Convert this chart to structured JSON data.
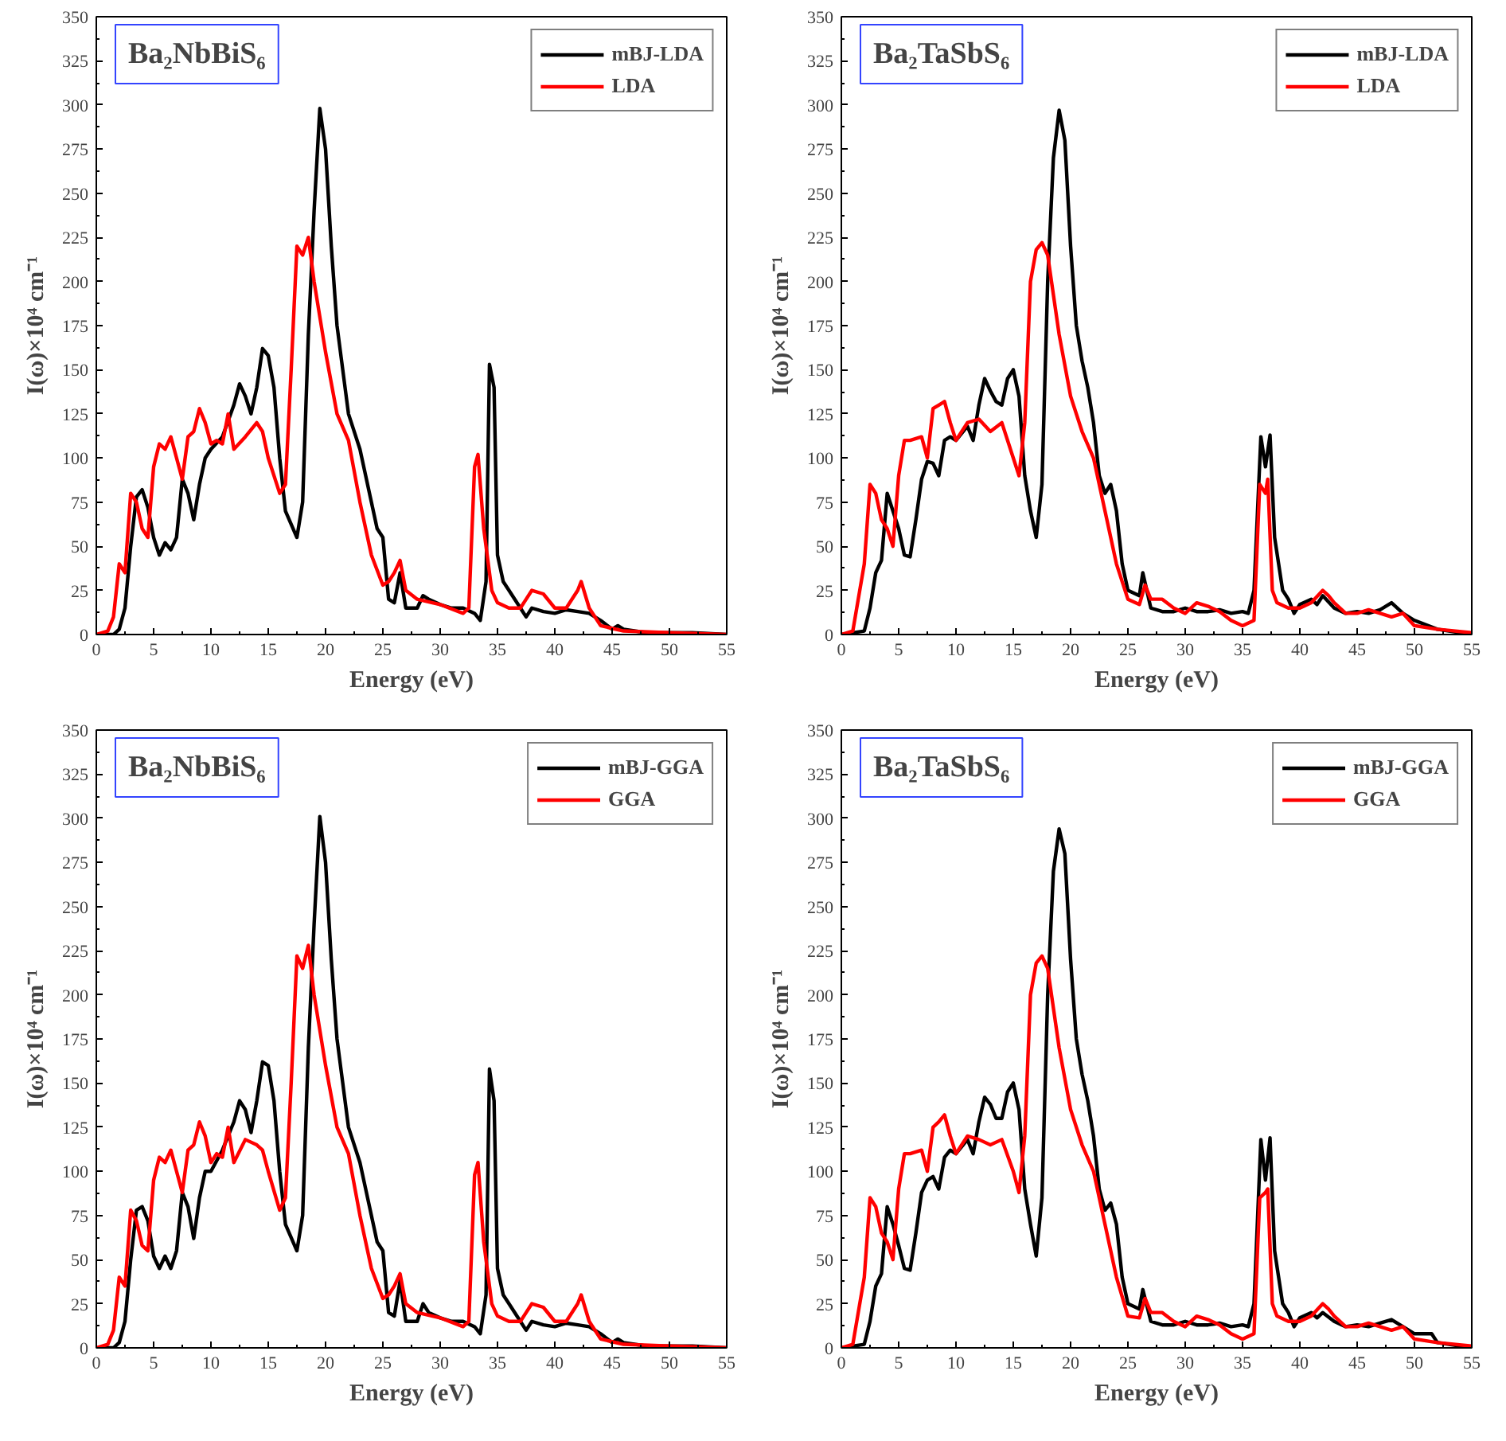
{
  "chart_data": [
    {
      "type": "line",
      "title": "Ba₂NbBiS₆",
      "xlabel": "Energy (eV)",
      "ylabel": "I(ω)×10⁴ cm⁻¹",
      "xlim": [
        0,
        55
      ],
      "ylim": [
        0,
        350
      ],
      "xticks": [
        0,
        5,
        10,
        15,
        20,
        25,
        30,
        35,
        40,
        45,
        50,
        55
      ],
      "yticks": [
        0,
        25,
        50,
        75,
        100,
        125,
        150,
        175,
        200,
        225,
        250,
        275,
        300,
        325,
        350
      ],
      "grid": false,
      "legend": "top right",
      "series": [
        {
          "name": "mBJ-LDA",
          "color": "#000000",
          "x": [
            0,
            1.5,
            2,
            2.5,
            3,
            3.5,
            4,
            4.5,
            5,
            5.5,
            6,
            6.5,
            7,
            7.5,
            8,
            8.5,
            9,
            9.5,
            10,
            11,
            12,
            12.5,
            13,
            13.5,
            14,
            14.5,
            15,
            15.5,
            16,
            16.5,
            17.5,
            18,
            18.5,
            19,
            19.5,
            20,
            20.5,
            21,
            21.5,
            22,
            23,
            24,
            24.5,
            25,
            25.5,
            26,
            26.5,
            27,
            28,
            28.5,
            29,
            30,
            31,
            32,
            33,
            33.5,
            34,
            34.3,
            34.7,
            35,
            35.5,
            36,
            37,
            37.5,
            38,
            39,
            40,
            41,
            42,
            43,
            44,
            45,
            45.5,
            46,
            48,
            52,
            55
          ],
          "values": [
            0,
            0,
            3,
            15,
            50,
            78,
            82,
            72,
            55,
            45,
            52,
            48,
            55,
            88,
            80,
            65,
            85,
            100,
            105,
            112,
            130,
            142,
            135,
            125,
            140,
            162,
            158,
            140,
            100,
            70,
            55,
            75,
            170,
            240,
            298,
            275,
            220,
            175,
            150,
            125,
            105,
            75,
            60,
            55,
            20,
            18,
            35,
            15,
            15,
            22,
            20,
            17,
            15,
            15,
            12,
            8,
            30,
            153,
            140,
            45,
            30,
            25,
            15,
            10,
            15,
            13,
            12,
            14,
            13,
            12,
            8,
            3,
            5,
            3,
            1,
            1,
            0
          ]
        },
        {
          "name": "LDA",
          "color": "#ff0000",
          "x": [
            0,
            1,
            1.5,
            2,
            2.5,
            3,
            3.5,
            4,
            4.5,
            5,
            5.5,
            6,
            6.5,
            7,
            7.5,
            8,
            8.5,
            9,
            9.5,
            10,
            10.5,
            11,
            11.5,
            12,
            13,
            14,
            14.5,
            15,
            16,
            16.5,
            17,
            17.5,
            18,
            18.5,
            19,
            20,
            21,
            22,
            23,
            24,
            25,
            25.5,
            26,
            26.5,
            27,
            28,
            30,
            32,
            32.5,
            33,
            33.3,
            33.8,
            34.5,
            35,
            36,
            37,
            37.5,
            38,
            39,
            40,
            41,
            42,
            42.3,
            43,
            44,
            46,
            50,
            55
          ],
          "values": [
            0,
            2,
            10,
            40,
            35,
            80,
            75,
            60,
            55,
            95,
            108,
            105,
            112,
            100,
            88,
            112,
            115,
            128,
            120,
            108,
            110,
            108,
            125,
            105,
            112,
            120,
            115,
            100,
            80,
            85,
            150,
            220,
            215,
            225,
            200,
            160,
            125,
            110,
            75,
            45,
            28,
            30,
            35,
            42,
            25,
            20,
            17,
            12,
            15,
            95,
            102,
            60,
            25,
            18,
            15,
            15,
            20,
            25,
            23,
            15,
            15,
            25,
            30,
            15,
            5,
            2,
            1,
            0
          ]
        }
      ]
    },
    {
      "type": "line",
      "title": "Ba₂TaSbS₆",
      "xlabel": "Energy (eV)",
      "ylabel": "I(ω)×10⁴ cm⁻¹",
      "xlim": [
        0,
        55
      ],
      "ylim": [
        0,
        350
      ],
      "xticks": [
        0,
        5,
        10,
        15,
        20,
        25,
        30,
        35,
        40,
        45,
        50,
        55
      ],
      "yticks": [
        0,
        25,
        50,
        75,
        100,
        125,
        150,
        175,
        200,
        225,
        250,
        275,
        300,
        325,
        350
      ],
      "grid": false,
      "legend": "top right",
      "series": [
        {
          "name": "mBJ-LDA",
          "color": "#000000",
          "x": [
            0,
            2,
            2.5,
            3,
            3.5,
            4,
            4.5,
            5,
            5.5,
            6,
            6.5,
            7,
            7.5,
            8,
            8.5,
            9,
            9.5,
            10,
            11,
            11.5,
            12,
            12.5,
            13,
            13.5,
            14,
            14.5,
            15,
            15.5,
            16,
            16.5,
            17,
            17.5,
            18,
            18.5,
            19,
            19.5,
            20,
            20.5,
            21,
            21.5,
            22,
            22.5,
            23,
            23.5,
            24,
            24.5,
            25,
            26,
            26.3,
            27,
            28,
            29,
            30,
            31,
            32,
            33,
            34,
            35,
            35.5,
            36,
            36.6,
            37,
            37.4,
            37.8,
            38.5,
            39,
            39.5,
            40,
            41,
            41.5,
            42,
            43,
            44,
            45,
            46,
            47,
            48,
            49,
            50,
            52,
            55
          ],
          "values": [
            0,
            2,
            15,
            35,
            42,
            80,
            70,
            60,
            45,
            44,
            65,
            88,
            98,
            97,
            90,
            110,
            112,
            110,
            118,
            110,
            130,
            145,
            138,
            132,
            130,
            145,
            150,
            135,
            90,
            70,
            55,
            85,
            200,
            270,
            297,
            280,
            220,
            175,
            155,
            140,
            120,
            90,
            80,
            85,
            70,
            40,
            25,
            22,
            35,
            15,
            13,
            13,
            15,
            13,
            13,
            14,
            12,
            13,
            12,
            25,
            112,
            95,
            113,
            55,
            25,
            20,
            12,
            17,
            20,
            17,
            22,
            15,
            12,
            13,
            12,
            14,
            18,
            12,
            8,
            3,
            0
          ]
        },
        {
          "name": "LDA",
          "color": "#ff0000",
          "x": [
            0,
            1,
            2,
            2.5,
            3,
            3.5,
            4,
            4.5,
            5,
            5.5,
            6,
            7,
            7.5,
            8,
            8.5,
            9,
            9.5,
            10,
            11,
            12,
            13,
            14,
            15,
            15.5,
            16,
            16.5,
            17,
            17.5,
            18,
            19,
            20,
            21,
            22,
            23,
            24,
            25,
            26,
            26.5,
            27,
            28,
            29,
            30,
            31,
            32,
            33,
            34,
            35,
            36,
            36.5,
            37,
            37.2,
            37.6,
            38,
            39,
            40,
            41,
            42,
            42.5,
            43,
            44,
            45,
            46,
            47,
            48,
            49,
            50,
            52,
            55
          ],
          "values": [
            0,
            2,
            40,
            85,
            80,
            65,
            60,
            50,
            90,
            110,
            110,
            112,
            100,
            128,
            130,
            132,
            120,
            110,
            120,
            122,
            115,
            120,
            100,
            90,
            120,
            200,
            218,
            222,
            215,
            170,
            135,
            115,
            100,
            70,
            40,
            20,
            17,
            28,
            20,
            20,
            15,
            12,
            18,
            16,
            13,
            8,
            5,
            8,
            85,
            80,
            88,
            25,
            18,
            15,
            15,
            18,
            25,
            22,
            18,
            12,
            12,
            14,
            12,
            10,
            12,
            5,
            3,
            1
          ]
        }
      ]
    },
    {
      "type": "line",
      "title": "Ba₂NbBiS₆",
      "xlabel": "Energy (eV)",
      "ylabel": "I(ω)×10⁴ cm⁻¹",
      "xlim": [
        0,
        55
      ],
      "ylim": [
        0,
        350
      ],
      "xticks": [
        0,
        5,
        10,
        15,
        20,
        25,
        30,
        35,
        40,
        45,
        50,
        55
      ],
      "yticks": [
        0,
        25,
        50,
        75,
        100,
        125,
        150,
        175,
        200,
        225,
        250,
        275,
        300,
        325,
        350
      ],
      "grid": false,
      "legend": "top right",
      "series": [
        {
          "name": "mBJ-GGA",
          "color": "#000000",
          "x": [
            0,
            1.5,
            2,
            2.5,
            3,
            3.5,
            4,
            4.5,
            5,
            5.5,
            6,
            6.5,
            7,
            7.5,
            8,
            8.5,
            9,
            9.5,
            10,
            11,
            12,
            12.5,
            13,
            13.5,
            14,
            14.5,
            15,
            15.5,
            16,
            16.5,
            17.5,
            18,
            18.5,
            19,
            19.5,
            20,
            20.5,
            21,
            21.5,
            22,
            23,
            24,
            24.5,
            25,
            25.5,
            26,
            26.5,
            27,
            28,
            28.5,
            29,
            30,
            31,
            32,
            33,
            33.5,
            34,
            34.3,
            34.7,
            35,
            35.5,
            36,
            37,
            37.5,
            38,
            39,
            40,
            41,
            42,
            43,
            44,
            45,
            45.5,
            46,
            48,
            52,
            55
          ],
          "values": [
            0,
            0,
            3,
            15,
            50,
            78,
            80,
            72,
            52,
            45,
            52,
            45,
            55,
            88,
            80,
            62,
            85,
            100,
            100,
            112,
            128,
            140,
            135,
            122,
            140,
            162,
            160,
            140,
            100,
            70,
            55,
            75,
            170,
            240,
            301,
            275,
            220,
            175,
            150,
            125,
            105,
            75,
            60,
            55,
            20,
            18,
            38,
            15,
            15,
            25,
            20,
            17,
            15,
            15,
            12,
            8,
            30,
            158,
            140,
            45,
            30,
            25,
            15,
            10,
            15,
            13,
            12,
            14,
            13,
            12,
            8,
            3,
            5,
            3,
            1,
            1,
            0
          ]
        },
        {
          "name": "GGA",
          "color": "#ff0000",
          "x": [
            0,
            1,
            1.5,
            2,
            2.5,
            3,
            3.5,
            4,
            4.5,
            5,
            5.5,
            6,
            6.5,
            7,
            7.5,
            8,
            8.5,
            9,
            9.5,
            10,
            10.5,
            11,
            11.5,
            12,
            13,
            14,
            14.5,
            15,
            16,
            16.5,
            17,
            17.5,
            18,
            18.5,
            19,
            20,
            21,
            22,
            23,
            24,
            25,
            25.5,
            26,
            26.5,
            27,
            28,
            30,
            32,
            32.5,
            33,
            33.3,
            33.8,
            34.5,
            35,
            36,
            37,
            37.5,
            38,
            39,
            40,
            41,
            42,
            42.3,
            43,
            44,
            46,
            50,
            55
          ],
          "values": [
            0,
            2,
            10,
            40,
            35,
            78,
            72,
            58,
            55,
            95,
            108,
            105,
            112,
            100,
            88,
            112,
            115,
            128,
            120,
            105,
            110,
            108,
            125,
            105,
            118,
            115,
            112,
            100,
            78,
            85,
            150,
            222,
            215,
            228,
            200,
            160,
            125,
            110,
            75,
            45,
            28,
            30,
            35,
            42,
            25,
            20,
            17,
            12,
            15,
            98,
            105,
            60,
            25,
            18,
            15,
            15,
            20,
            25,
            23,
            15,
            15,
            25,
            30,
            15,
            5,
            2,
            1,
            0
          ]
        }
      ]
    },
    {
      "type": "line",
      "title": "Ba₂TaSbS₆",
      "xlabel": "Energy (eV)",
      "ylabel": "I(ω)×10⁴ cm⁻¹",
      "xlim": [
        0,
        55
      ],
      "ylim": [
        0,
        350
      ],
      "xticks": [
        0,
        5,
        10,
        15,
        20,
        25,
        30,
        35,
        40,
        45,
        50,
        55
      ],
      "yticks": [
        0,
        25,
        50,
        75,
        100,
        125,
        150,
        175,
        200,
        225,
        250,
        275,
        300,
        325,
        350
      ],
      "grid": false,
      "legend": "top right",
      "series": [
        {
          "name": "mBJ-GGA",
          "color": "#000000",
          "x": [
            0,
            2,
            2.5,
            3,
            3.5,
            4,
            4.5,
            5,
            5.5,
            6,
            6.5,
            7,
            7.5,
            8,
            8.5,
            9,
            9.5,
            10,
            11,
            11.5,
            12,
            12.5,
            13,
            13.5,
            14,
            14.5,
            15,
            15.5,
            16,
            16.5,
            17,
            17.5,
            18,
            18.5,
            19,
            19.5,
            20,
            20.5,
            21,
            21.5,
            22,
            22.5,
            23,
            23.5,
            24,
            24.5,
            25,
            26,
            26.3,
            27,
            28,
            29,
            30,
            31,
            32,
            33,
            34,
            35,
            35.5,
            36,
            36.6,
            37,
            37.4,
            37.8,
            38.5,
            39,
            39.5,
            40,
            41,
            41.5,
            42,
            43,
            44,
            45,
            46,
            47,
            48,
            49,
            50,
            51.5,
            52,
            55
          ],
          "values": [
            0,
            2,
            15,
            35,
            42,
            80,
            70,
            58,
            45,
            44,
            65,
            88,
            95,
            97,
            90,
            108,
            112,
            110,
            118,
            110,
            128,
            142,
            138,
            130,
            130,
            145,
            150,
            135,
            90,
            70,
            52,
            85,
            200,
            270,
            294,
            280,
            220,
            175,
            155,
            140,
            120,
            90,
            78,
            82,
            70,
            40,
            25,
            22,
            33,
            15,
            13,
            13,
            15,
            13,
            13,
            14,
            12,
            13,
            12,
            25,
            118,
            95,
            119,
            55,
            25,
            20,
            12,
            17,
            20,
            17,
            20,
            15,
            12,
            13,
            12,
            14,
            16,
            12,
            8,
            8,
            3,
            0
          ]
        },
        {
          "name": "GGA",
          "color": "#ff0000",
          "x": [
            0,
            1,
            2,
            2.5,
            3,
            3.5,
            4,
            4.5,
            5,
            5.5,
            6,
            7,
            7.5,
            8,
            8.5,
            9,
            9.5,
            10,
            11,
            12,
            13,
            14,
            15,
            15.5,
            16,
            16.5,
            17,
            17.5,
            18,
            19,
            20,
            21,
            22,
            23,
            24,
            25,
            26,
            26.5,
            27,
            28,
            29,
            30,
            31,
            32,
            33,
            34,
            35,
            36,
            36.5,
            37,
            37.2,
            37.6,
            38,
            39,
            40,
            41,
            42,
            42.5,
            43,
            44,
            45,
            46,
            47,
            48,
            49,
            50,
            52,
            55
          ],
          "values": [
            0,
            2,
            40,
            85,
            80,
            65,
            60,
            50,
            90,
            110,
            110,
            112,
            100,
            125,
            128,
            132,
            120,
            110,
            120,
            118,
            115,
            118,
            100,
            88,
            120,
            200,
            218,
            222,
            215,
            170,
            135,
            115,
            100,
            70,
            40,
            18,
            17,
            28,
            20,
            20,
            15,
            12,
            18,
            16,
            13,
            8,
            5,
            8,
            85,
            88,
            90,
            25,
            18,
            15,
            15,
            18,
            25,
            22,
            18,
            12,
            12,
            14,
            12,
            10,
            12,
            5,
            3,
            1
          ]
        }
      ]
    }
  ]
}
